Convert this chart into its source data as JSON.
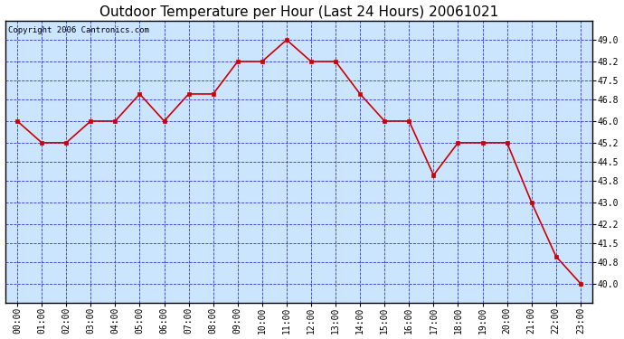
{
  "title": "Outdoor Temperature per Hour (Last 24 Hours) 20061021",
  "copyright_text": "Copyright 2006 Cantronics.com",
  "x_labels": [
    "00:00",
    "01:00",
    "02:00",
    "03:00",
    "04:00",
    "05:00",
    "06:00",
    "07:00",
    "08:00",
    "09:00",
    "10:00",
    "11:00",
    "12:00",
    "13:00",
    "14:00",
    "15:00",
    "16:00",
    "17:00",
    "18:00",
    "19:00",
    "20:00",
    "21:00",
    "22:00",
    "23:00"
  ],
  "y_values": [
    46.0,
    45.2,
    45.2,
    46.0,
    46.0,
    47.0,
    46.0,
    47.0,
    47.0,
    48.2,
    48.2,
    49.0,
    48.2,
    48.2,
    47.0,
    46.0,
    46.0,
    44.0,
    45.2,
    45.2,
    45.2,
    43.0,
    41.0,
    40.0
  ],
  "ylim_min": 39.3,
  "ylim_max": 49.7,
  "ytick_values": [
    40.0,
    40.8,
    41.5,
    42.2,
    43.0,
    43.8,
    44.5,
    45.2,
    46.0,
    46.8,
    47.5,
    48.2,
    49.0
  ],
  "ytick_labels": [
    "40.0",
    "40.8",
    "41.5",
    "42.2",
    "43.0",
    "43.8",
    "44.5",
    "45.2",
    "46.0",
    "46.8",
    "47.5",
    "48.2",
    "49.0"
  ],
  "line_color": "#cc0000",
  "marker_color": "#cc0000",
  "fig_bg_color": "#ffffff",
  "plot_bg_color": "#cce5ff",
  "grid_color": "#3333cc",
  "title_color": "#000000",
  "title_fontsize": 11,
  "axis_label_fontsize": 7,
  "copyright_fontsize": 6.5,
  "border_color": "#000000"
}
